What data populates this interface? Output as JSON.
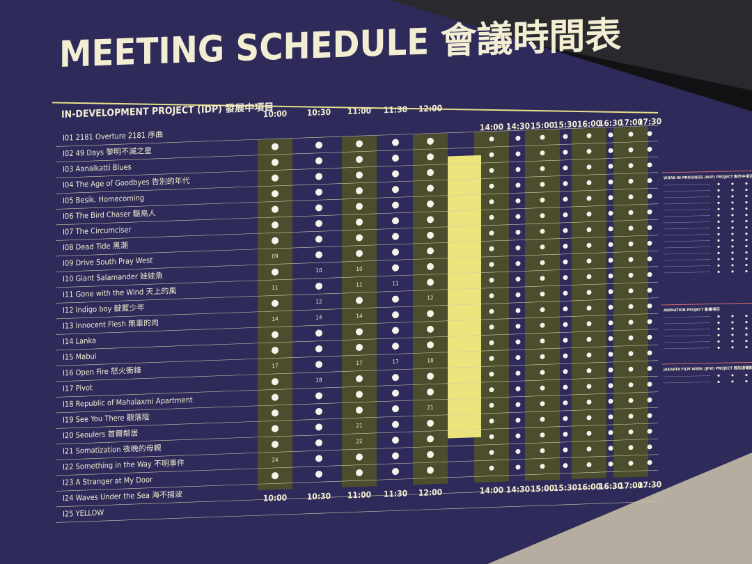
{
  "title": "MEETING SCHEDULE 會議時間表",
  "section": "IN-DEVELOPMENT PROJECT (IDP) 發展中項目",
  "projects": [
    "I01  2181 Overture 2181 序曲",
    "I02  49 Days 黎明不滅之星",
    "I03  Aanaikatti Blues",
    "I04  The Age of Goodbyes 告別的年代",
    "I05  Besik. Homecoming",
    "I06  The Bird Chaser 驅鳥人",
    "I07  The Circumciser",
    "I08  Dead Tide 黑潮",
    "I09  Drive South Pray West",
    "I10  Giant Salamander 娃娃魚",
    "I11  Gone with the Wind 天上的風",
    "I12  Indigo boy 靛藍少年",
    "I13  Innocent Flesh 無辜的肉",
    "I14  Lanka",
    "I15  Mabui",
    "I16  Open Fire 怒火衝鋒",
    "I17  Pivot",
    "I18  Republic of Mahalaxmi Apartment",
    "I19  See You There 觀落陰",
    "I20  Seoulers 首爾鄰居",
    "I21  Somatization 夜晚的母親",
    "I22  Something in the Way 不明事件",
    "I23  A Stranger at My Door",
    "I24  Waves Under the Sea 海不揚波",
    "I25  YELLOW"
  ],
  "columns": [
    {
      "time": "10:00",
      "shaded": true,
      "cells": [
        null,
        null,
        null,
        null,
        null,
        null,
        null,
        null,
        "09",
        null,
        "11",
        null,
        "14",
        null,
        null,
        "17",
        null,
        null,
        null,
        null,
        null,
        "24",
        null,
        null,
        null
      ]
    },
    {
      "time": "10:30",
      "shaded": false,
      "cells": [
        null,
        null,
        null,
        null,
        null,
        null,
        null,
        null,
        null,
        "10",
        null,
        "12",
        "14",
        null,
        null,
        null,
        "18",
        null,
        null,
        null,
        null,
        null,
        null,
        null,
        null
      ]
    },
    {
      "time": "11:00",
      "shaded": true,
      "cells": [
        null,
        null,
        null,
        null,
        null,
        null,
        null,
        null,
        null,
        "10",
        "11",
        null,
        "14",
        null,
        null,
        "17",
        null,
        null,
        null,
        "21",
        "22",
        null,
        null,
        null,
        null
      ]
    },
    {
      "time": "11:30",
      "shaded": false,
      "cells": [
        null,
        null,
        null,
        null,
        null,
        null,
        null,
        null,
        null,
        null,
        "11",
        null,
        null,
        null,
        null,
        "17",
        null,
        null,
        null,
        null,
        null,
        null,
        null,
        null,
        null
      ]
    },
    {
      "time": "12:00",
      "shaded": true,
      "cells": [
        null,
        null,
        null,
        null,
        null,
        null,
        null,
        null,
        null,
        null,
        null,
        "12",
        null,
        null,
        null,
        "18",
        null,
        null,
        "21",
        null,
        null,
        null,
        null,
        null,
        null
      ]
    },
    {
      "time": "14:00",
      "shaded": true,
      "cells": []
    },
    {
      "time": "14:30",
      "shaded": false,
      "cells": []
    },
    {
      "time": "15:00",
      "shaded": true,
      "cells": []
    },
    {
      "time": "15:30",
      "shaded": false,
      "cells": []
    },
    {
      "time": "16:00",
      "shaded": true,
      "cells": []
    },
    {
      "time": "16:30",
      "shaded": false,
      "cells": []
    },
    {
      "time": "17:00",
      "shaded": true,
      "cells": []
    },
    {
      "time": "17:30",
      "shaded": false,
      "cells": []
    }
  ],
  "side_sections": [
    "WORK-IN-PROGRESS (WIP) PROJECT 製作中項目",
    "ANIMATION PROJECT 動畫項目",
    "JAKARTA FILM WEEK (JFW) PROJECT 雅加達電影周項目"
  ]
}
